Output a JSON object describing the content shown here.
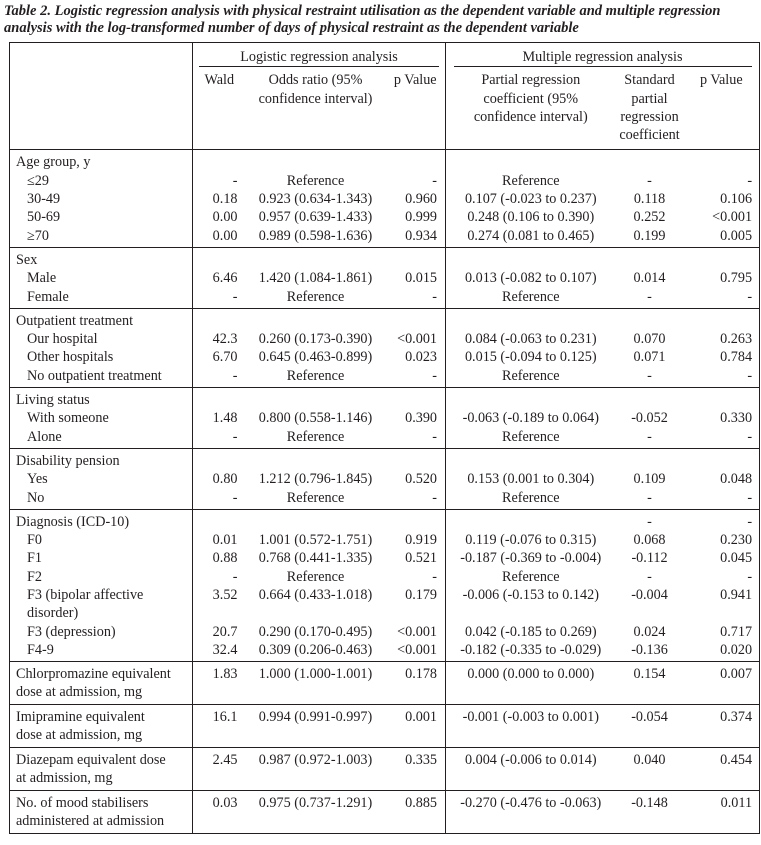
{
  "caption": {
    "line1": "Table 2. Logistic regression analysis with physical restraint utilisation as the dependent variable and multiple regression",
    "line2": "analysis with the log-transformed number of days of physical restraint as the dependent variable"
  },
  "headers": {
    "group_logistic": "Logistic regression analysis",
    "group_multiple": "Multiple regression analysis",
    "wald": "Wald",
    "odds_ratio_1": "Odds ratio (95%",
    "odds_ratio_2": "confidence interval)",
    "p_value": "p Value",
    "partial_1": "Partial regression",
    "partial_2": "coefficient (95%",
    "partial_3": "confidence interval)",
    "standard_1": "Standard",
    "standard_2": "partial",
    "standard_3": "regression",
    "standard_4": "coefficient"
  },
  "groups": [
    {
      "title": "Age group, y",
      "rows": [
        {
          "label": "≤29",
          "wald": "-",
          "or": "Reference",
          "p1": "-",
          "coef": "Reference",
          "std": "-",
          "p2": "-"
        },
        {
          "label": "30-49",
          "wald": "0.18",
          "or": "0.923 (0.634-1.343)",
          "p1": "0.960",
          "coef": "0.107 (-0.023 to 0.237)",
          "std": "0.118",
          "p2": "0.106"
        },
        {
          "label": "50-69",
          "wald": "0.00",
          "or": "0.957 (0.639-1.433)",
          "p1": "0.999",
          "coef": "0.248 (0.106 to 0.390)",
          "std": "0.252",
          "p2": "<0.001"
        },
        {
          "label": "≥70",
          "wald": "0.00",
          "or": "0.989 (0.598-1.636)",
          "p1": "0.934",
          "coef": "0.274 (0.081 to 0.465)",
          "std": "0.199",
          "p2": "0.005"
        }
      ]
    },
    {
      "title": "Sex",
      "rows": [
        {
          "label": "Male",
          "wald": "6.46",
          "or": "1.420 (1.084-1.861)",
          "p1": "0.015",
          "coef": "0.013 (-0.082 to 0.107)",
          "std": "0.014",
          "p2": "0.795"
        },
        {
          "label": "Female",
          "wald": "-",
          "or": "Reference",
          "p1": "-",
          "coef": "Reference",
          "std": "-",
          "p2": "-"
        }
      ]
    },
    {
      "title": "Outpatient treatment",
      "rows": [
        {
          "label": "Our hospital",
          "wald": "42.3",
          "or": "0.260 (0.173-0.390)",
          "p1": "<0.001",
          "coef": "0.084 (-0.063 to 0.231)",
          "std": "0.070",
          "p2": "0.263"
        },
        {
          "label": "Other hospitals",
          "wald": "6.70",
          "or": "0.645 (0.463-0.899)",
          "p1": "0.023",
          "coef": "0.015 (-0.094 to 0.125)",
          "std": "0.071",
          "p2": "0.784"
        },
        {
          "label": "No outpatient treatment",
          "wald": "-",
          "or": "Reference",
          "p1": "-",
          "coef": "Reference",
          "std": "-",
          "p2": "-"
        }
      ]
    },
    {
      "title": "Living status",
      "rows": [
        {
          "label": "With someone",
          "wald": "1.48",
          "or": "0.800 (0.558-1.146)",
          "p1": "0.390",
          "coef": "-0.063 (-0.189 to 0.064)",
          "std": "-0.052",
          "p2": "0.330"
        },
        {
          "label": "Alone",
          "wald": "-",
          "or": "Reference",
          "p1": "-",
          "coef": "Reference",
          "std": "-",
          "p2": "-"
        }
      ]
    },
    {
      "title": "Disability pension",
      "rows": [
        {
          "label": "Yes",
          "wald": "0.80",
          "or": "1.212 (0.796-1.845)",
          "p1": "0.520",
          "coef": "0.153 (0.001 to 0.304)",
          "std": "0.109",
          "p2": "0.048"
        },
        {
          "label": "No",
          "wald": "-",
          "or": "Reference",
          "p1": "-",
          "coef": "Reference",
          "std": "-",
          "p2": "-"
        }
      ]
    },
    {
      "title": "Diagnosis (ICD-10)",
      "title_std": "-",
      "title_p2": "-",
      "rows": [
        {
          "label": "F0",
          "wald": "0.01",
          "or": "1.001 (0.572-1.751)",
          "p1": "0.919",
          "coef": "0.119 (-0.076 to 0.315)",
          "std": "0.068",
          "p2": "0.230"
        },
        {
          "label": "F1",
          "wald": "0.88",
          "or": "0.768 (0.441-1.335)",
          "p1": "0.521",
          "coef": "-0.187 (-0.369 to -0.004)",
          "std": "-0.112",
          "p2": "0.045"
        },
        {
          "label": "F2",
          "wald": "-",
          "or": "Reference",
          "p1": "-",
          "coef": "Reference",
          "std": "-",
          "p2": "-"
        },
        {
          "label": "F3 (bipolar affective",
          "label2": "disorder)",
          "wald": "3.52",
          "or": "0.664 (0.433-1.018)",
          "p1": "0.179",
          "coef": "-0.006 (-0.153 to 0.142)",
          "std": "-0.004",
          "p2": "0.941"
        },
        {
          "label": "F3 (depression)",
          "wald": "20.7",
          "or": "0.290 (0.170-0.495)",
          "p1": "<0.001",
          "coef": "0.042 (-0.185 to 0.269)",
          "std": "0.024",
          "p2": "0.717"
        },
        {
          "label": "F4-9",
          "wald": "32.4",
          "or": "0.309 (0.206-0.463)",
          "p1": "<0.001",
          "coef": "-0.182 (-0.335 to -0.029)",
          "std": "-0.136",
          "p2": "0.020"
        }
      ]
    },
    {
      "single": true,
      "label": "Chlorpromazine equivalent",
      "label2": "dose at admission, mg",
      "wald": "1.83",
      "or": "1.000 (1.000-1.001)",
      "p1": "0.178",
      "coef": "0.000 (0.000 to 0.000)",
      "std": "0.154",
      "p2": "0.007"
    },
    {
      "single": true,
      "label": "Imipramine equivalent",
      "label2": "dose at admission, mg",
      "wald": "16.1",
      "or": "0.994 (0.991-0.997)",
      "p1": "0.001",
      "coef": "-0.001 (-0.003 to 0.001)",
      "std": "-0.054",
      "p2": "0.374"
    },
    {
      "single": true,
      "label": "Diazepam equivalent dose",
      "label2": "at admission, mg",
      "wald": "2.45",
      "or": "0.987 (0.972-1.003)",
      "p1": "0.335",
      "coef": "0.004 (-0.006 to 0.014)",
      "std": "0.040",
      "p2": "0.454"
    },
    {
      "single": true,
      "label": "No. of mood stabilisers",
      "label2": "administered at admission",
      "wald": "0.03",
      "or": "0.975 (0.737-1.291)",
      "p1": "0.885",
      "coef": "-0.270 (-0.476 to -0.063)",
      "std": "-0.148",
      "p2": "0.011"
    }
  ]
}
